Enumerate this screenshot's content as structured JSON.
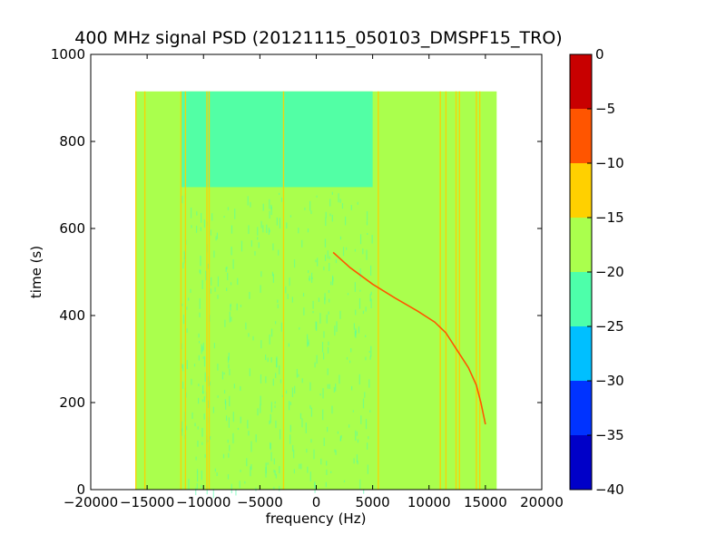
{
  "chart_data": {
    "type": "heatmap",
    "title": "400 MHz signal PSD (20121115_050103_DMSPF15_TRO)",
    "xlabel": "frequency (Hz)",
    "ylabel": "time (s)",
    "xlim": [
      -20000,
      20000
    ],
    "ylim": [
      0,
      1000
    ],
    "xticks": [
      -20000,
      -15000,
      -10000,
      -5000,
      0,
      5000,
      10000,
      15000,
      20000
    ],
    "xtick_labels": [
      "−20000",
      "−15000",
      "−10000",
      "−5000",
      "0",
      "5000",
      "10000",
      "15000",
      "20000"
    ],
    "yticks": [
      0,
      200,
      400,
      600,
      800,
      1000
    ],
    "ytick_labels": [
      "0",
      "200",
      "400",
      "600",
      "800",
      "1000"
    ],
    "data_extent": {
      "x": [
        -16000,
        16000
      ],
      "y": [
        0,
        915
      ]
    },
    "background_level_bin": [
      -20,
      -15
    ],
    "quiet_region": {
      "x": [
        -12000,
        5000
      ],
      "y": [
        695,
        915
      ],
      "level_bin": [
        -25,
        -20
      ]
    },
    "vertical_lines_hz": [
      -16000,
      -15200,
      -12000,
      -11600,
      -9700,
      -9500,
      -2900,
      5500,
      11000,
      11500,
      12400,
      12700,
      14200,
      14500
    ],
    "doppler_trace": [
      {
        "x": 1500,
        "y": 545
      },
      {
        "x": 3000,
        "y": 510
      },
      {
        "x": 5000,
        "y": 472
      },
      {
        "x": 7000,
        "y": 440
      },
      {
        "x": 9000,
        "y": 410
      },
      {
        "x": 10500,
        "y": 385
      },
      {
        "x": 11500,
        "y": 360
      },
      {
        "x": 12500,
        "y": 320
      },
      {
        "x": 13500,
        "y": 280
      },
      {
        "x": 14200,
        "y": 240
      },
      {
        "x": 14600,
        "y": 200
      },
      {
        "x": 15000,
        "y": 150
      }
    ],
    "colorbar": {
      "levels": [
        -40,
        -35,
        -30,
        -25,
        -20,
        -15,
        -10,
        -5,
        0
      ],
      "tick_labels": [
        "−40",
        "−35",
        "−30",
        "−25",
        "−20",
        "−15",
        "−10",
        "−5",
        "0"
      ],
      "colors": [
        "#0000c8",
        "#0033ff",
        "#00bfff",
        "#4dffaa",
        "#aaff4d",
        "#ffd000",
        "#ff5500",
        "#c80000"
      ]
    }
  }
}
